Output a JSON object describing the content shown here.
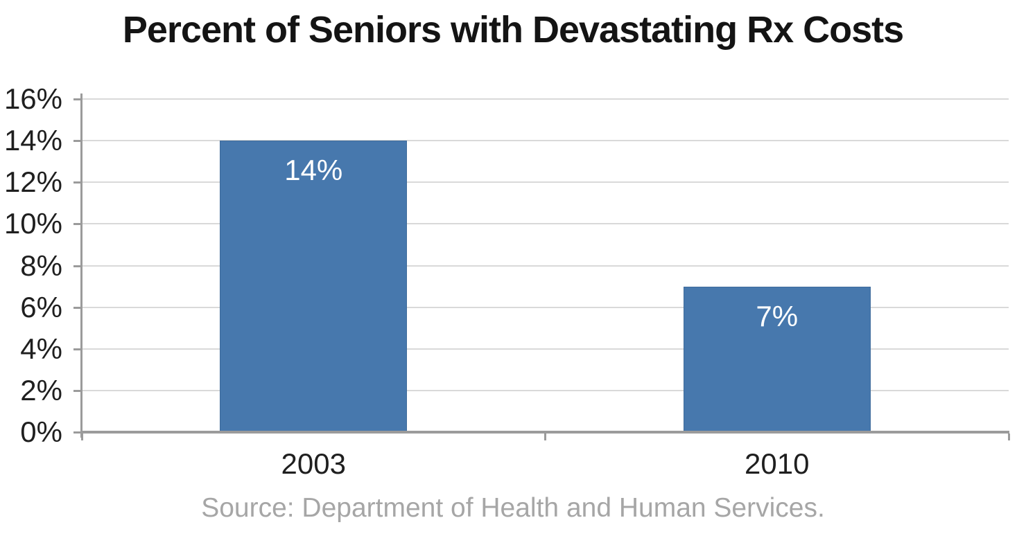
{
  "chart_data": {
    "type": "bar",
    "title": "Percent of Seniors with Devastating Rx Costs",
    "categories": [
      "2003",
      "2010"
    ],
    "values": [
      14,
      7
    ],
    "bar_labels": [
      "14%",
      "7%"
    ],
    "xlabel": "",
    "ylabel": "",
    "ylim": [
      0,
      16
    ],
    "ytick_step": 2,
    "yticks": [
      0,
      2,
      4,
      6,
      8,
      10,
      12,
      14,
      16
    ],
    "ytick_labels": [
      "0%",
      "2%",
      "4%",
      "6%",
      "8%",
      "10%",
      "12%",
      "14%",
      "16%"
    ],
    "grid": "horizontal",
    "legend": "none",
    "source_note": "Source: Department of Health and Human Services.",
    "colors": {
      "bar": "#4778ad",
      "bar_border": "#3e6b9b",
      "bar_label_text": "#ffffff",
      "grid_line": "#d9d9d9",
      "axis_line": "#9b9b9b",
      "tick_text": "#1f1f1f",
      "title_text": "#141414",
      "source_text": "#a6a6a6",
      "background": "#ffffff"
    }
  }
}
